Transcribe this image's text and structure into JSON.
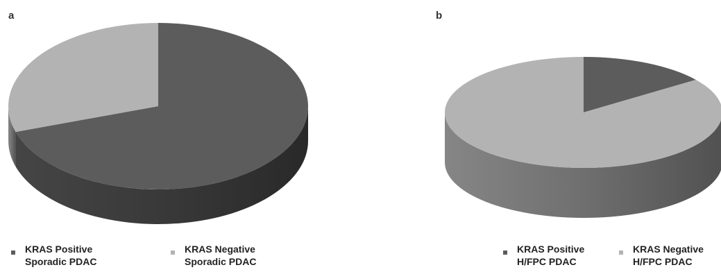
{
  "chart_data": [
    {
      "panel_label": "a",
      "type": "pie",
      "style": "3d",
      "slices": [
        {
          "label": "KRAS Positive Sporadic PDAC",
          "value": 70,
          "color": "#5c5c5c"
        },
        {
          "label": "KRAS Negative Sporadic PDAC",
          "value": 30,
          "color": "#b3b3b3"
        }
      ],
      "legend": [
        {
          "line1": "KRAS Positive",
          "line2": "Sporadic PDAC",
          "color": "#5c5c5c"
        },
        {
          "line1": "KRAS Negative",
          "line2": "Sporadic PDAC",
          "color": "#b3b3b3"
        }
      ],
      "legend_position": "bottom"
    },
    {
      "panel_label": "b",
      "type": "pie",
      "style": "3d",
      "slices": [
        {
          "label": "KRAS Positive H/FPC PDAC",
          "value": 15,
          "color": "#5c5c5c"
        },
        {
          "label": "KRAS Negative H/FPC PDAC",
          "value": 85,
          "color": "#b3b3b3"
        }
      ],
      "legend": [
        {
          "line1": "KRAS Positive",
          "line2": "H/FPC PDAC",
          "color": "#5c5c5c"
        },
        {
          "line1": "KRAS Negative",
          "line2": "H/FPC PDAC",
          "color": "#b3b3b3"
        }
      ],
      "legend_position": "bottom"
    }
  ]
}
